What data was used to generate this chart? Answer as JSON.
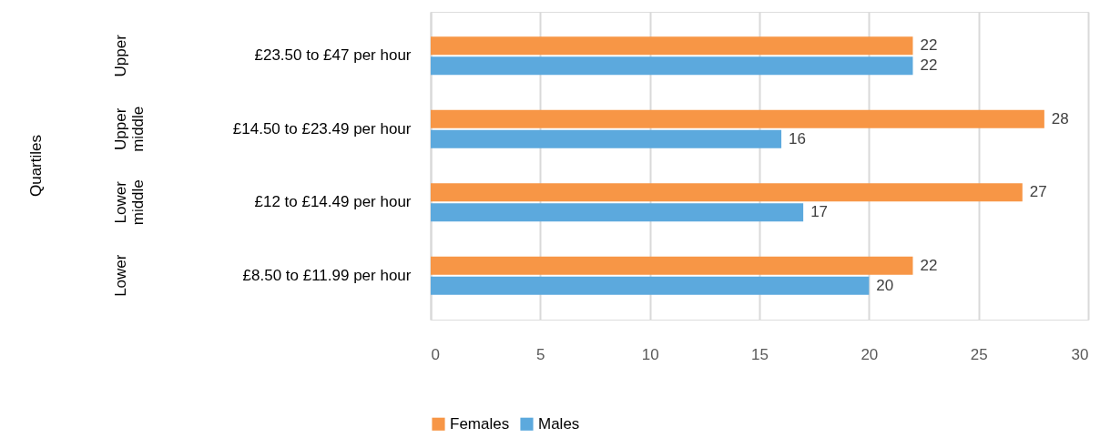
{
  "chart_data": {
    "type": "bar",
    "orientation": "horizontal",
    "categories": [
      "£23.50 to £47 per hour",
      "£14.50 to £23.49 per hour",
      "£12 to £14.49 per hour",
      "£8.50 to £11.99 per hour"
    ],
    "series": [
      {
        "name": "Females",
        "color": "#f79646",
        "values": [
          22,
          28,
          27,
          22
        ]
      },
      {
        "name": "Males",
        "color": "#5ca9dd",
        "values": [
          22,
          16,
          17,
          20
        ]
      }
    ],
    "xlim": [
      0,
      30
    ],
    "xticks": [
      0,
      5,
      10,
      15,
      20,
      25,
      30
    ],
    "grid": "x",
    "legend": "bottom",
    "data_labels": true,
    "annotations": [
      "Quartiles",
      "Upper",
      "Upper middle",
      "Lower middle",
      "Lower"
    ]
  }
}
